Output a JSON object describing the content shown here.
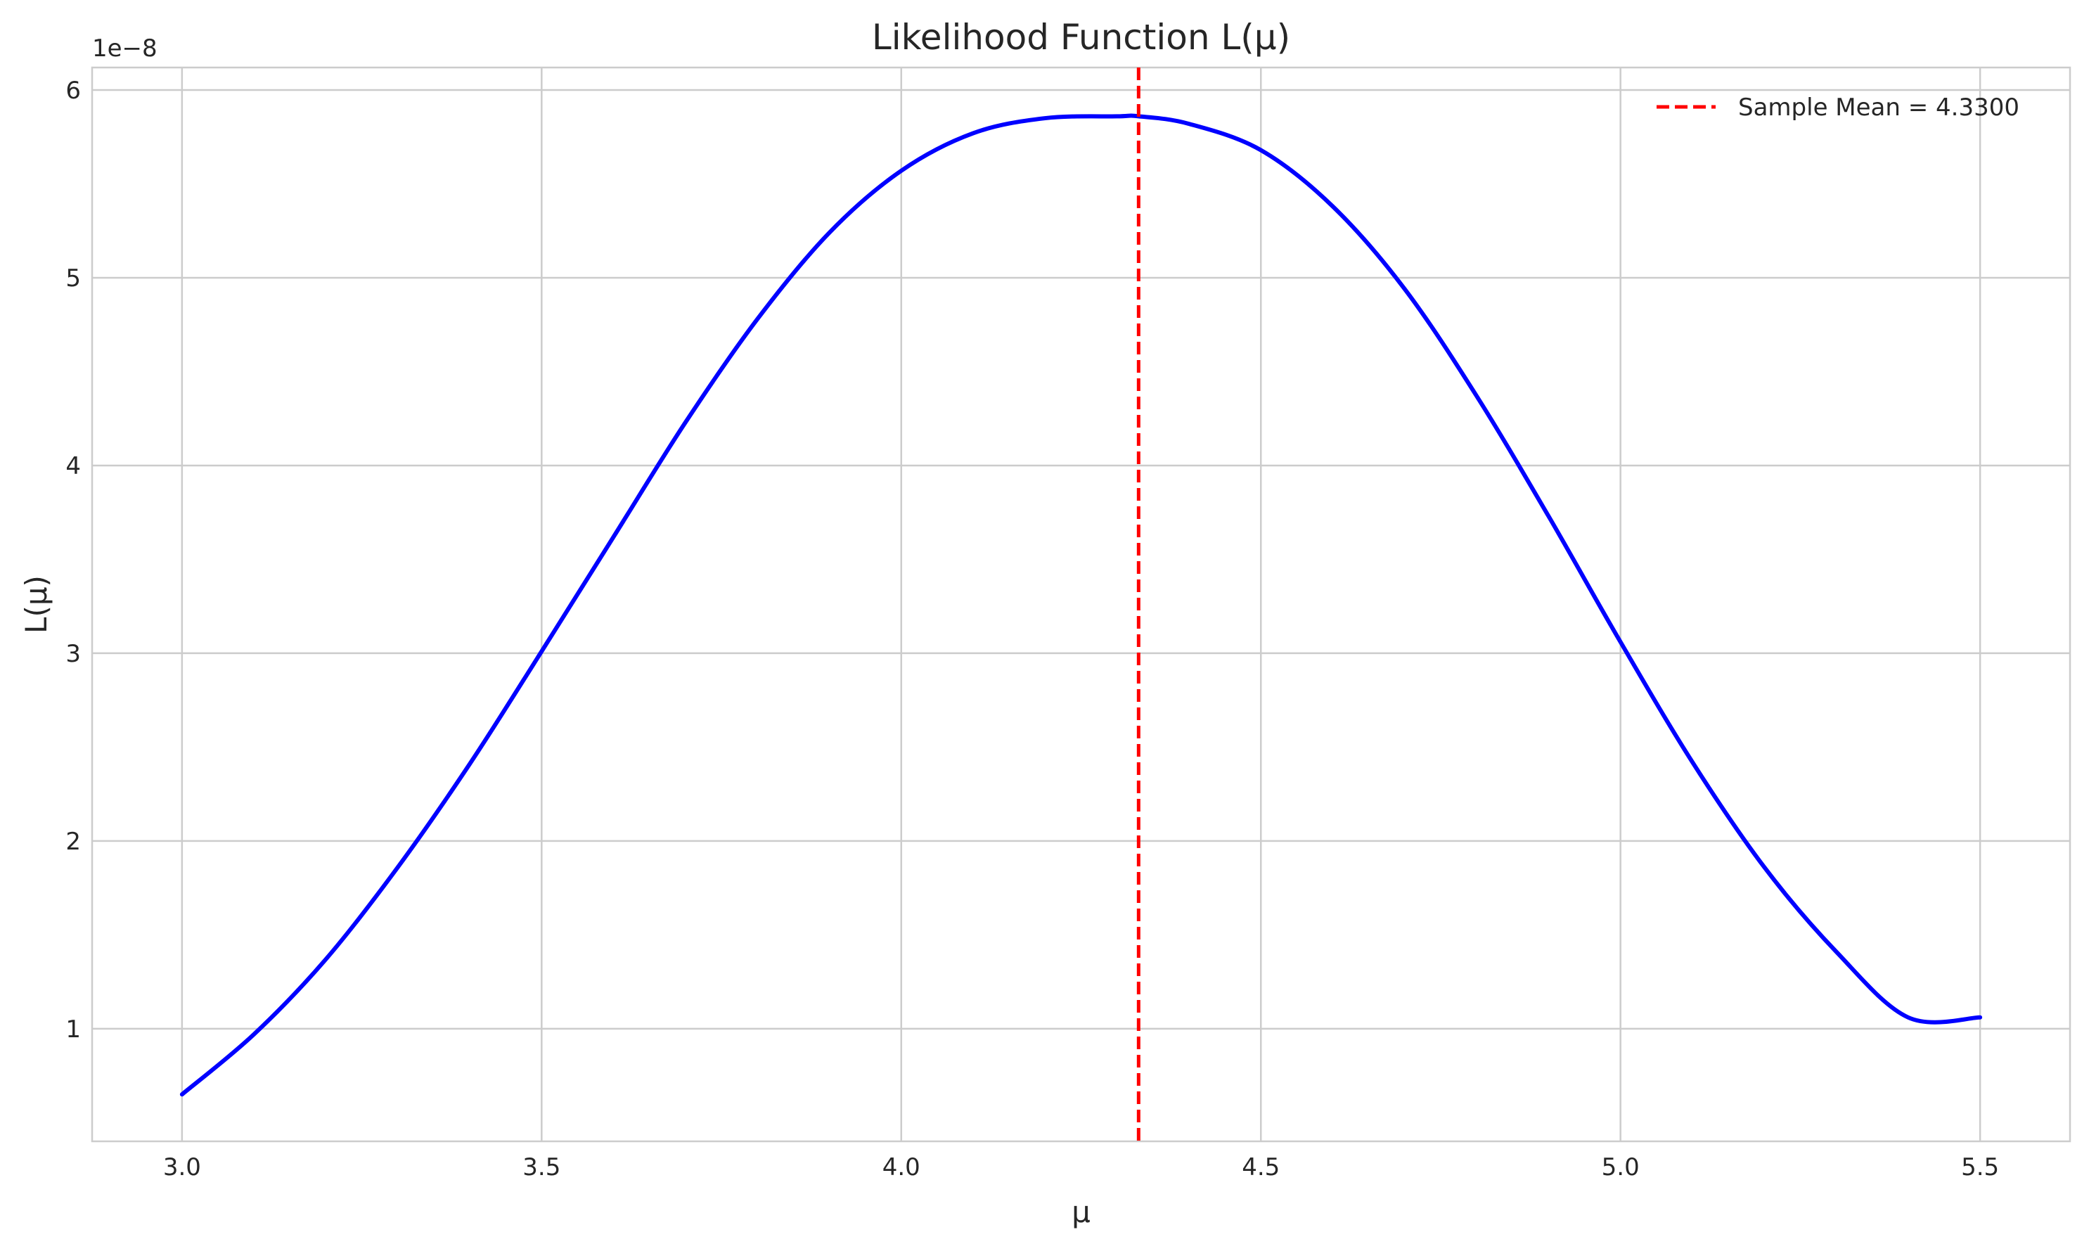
{
  "chart_data": {
    "type": "line",
    "title": "Likelihood Function L(μ)",
    "xlabel": "μ",
    "ylabel": "L(μ)",
    "y_offset_label": "1e−8",
    "y_scale": 1e-08,
    "xlim": [
      2.875,
      5.625
    ],
    "ylim": [
      4e-09,
      6.12e-08
    ],
    "x_ticks": [
      3.0,
      3.5,
      4.0,
      4.5,
      5.0,
      5.5
    ],
    "x_tick_labels": [
      "3.0",
      "3.5",
      "4.0",
      "4.5",
      "5.0",
      "5.5"
    ],
    "y_ticks": [
      1e-08,
      2e-08,
      3e-08,
      4e-08,
      5e-08,
      6e-08
    ],
    "y_tick_labels": [
      "1",
      "2",
      "3",
      "4",
      "5",
      "6"
    ],
    "grid": true,
    "legend_position": "top-right",
    "series": [
      {
        "name": "",
        "color": "#0000ff",
        "style": "solid",
        "x": [
          3.0,
          3.1,
          3.2,
          3.3,
          3.4,
          3.5,
          3.6,
          3.7,
          3.8,
          3.9,
          4.0,
          4.1,
          4.2,
          4.3,
          4.33,
          4.4,
          4.5,
          4.6,
          4.7,
          4.8,
          4.9,
          5.0,
          5.1,
          5.2,
          5.3,
          5.4,
          5.5
        ],
        "y": [
          6.5e-09,
          9.7e-09,
          1.37e-08,
          1.86e-08,
          2.41e-08,
          3.01e-08,
          3.62e-08,
          4.23e-08,
          4.78e-08,
          5.24e-08,
          5.57e-08,
          5.77e-08,
          5.85e-08,
          5.86e-08,
          5.86e-08,
          5.82e-08,
          5.68e-08,
          5.38e-08,
          4.94e-08,
          4.37e-08,
          3.73e-08,
          3.06e-08,
          2.42e-08,
          1.86e-08,
          1.41e-08,
          1.06e-08,
          1.06e-08
        ]
      }
    ],
    "vlines": [
      {
        "name": "Sample Mean = 4.3300",
        "x": 4.33,
        "color": "#ff0000",
        "style": "dashed"
      }
    ]
  }
}
